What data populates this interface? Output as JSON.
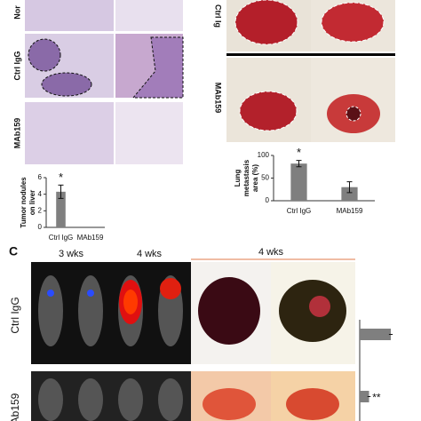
{
  "panels": {
    "top_left": {
      "row_labels": [
        "Nor",
        "Ctrl IgG",
        "MAb159"
      ]
    },
    "top_right": {
      "row_labels": [
        "Ctrl Ig",
        "MAb159"
      ]
    },
    "c": {
      "letter": "C",
      "time_labels": [
        "3 wks",
        "4 wks",
        "4 wks"
      ],
      "row_labels": [
        "Ctrl IgG",
        "Ab159"
      ]
    }
  },
  "chart_data": [
    {
      "type": "bar",
      "ylabel": [
        "Tumor nodules",
        "on liver"
      ],
      "categories": [
        "Ctrl IgG",
        "MAb159"
      ],
      "values": [
        4.3,
        0
      ],
      "errors": [
        0.8,
        0
      ],
      "annotations": [
        "*",
        null
      ],
      "ylim": [
        0,
        6
      ],
      "yticks": [
        0,
        2,
        4,
        6
      ],
      "color": "#7f7f7f"
    },
    {
      "type": "bar",
      "ylabel": [
        "Lung",
        "metastasis",
        "area (%)"
      ],
      "categories": [
        "Ctrl IgG",
        "MAb159"
      ],
      "values": [
        82,
        30
      ],
      "errors": [
        7,
        12
      ],
      "annotations": [
        "*",
        null
      ],
      "ylim": [
        0,
        100
      ],
      "yticks": [
        0,
        50,
        100
      ],
      "color": "#7f7f7f"
    },
    {
      "type": "hbar",
      "values": [
        100,
        30
      ],
      "errors": [
        6,
        5
      ],
      "annotations": [
        null,
        "**"
      ],
      "xlim": [
        0,
        100
      ],
      "color": "#7f7f7f"
    }
  ]
}
